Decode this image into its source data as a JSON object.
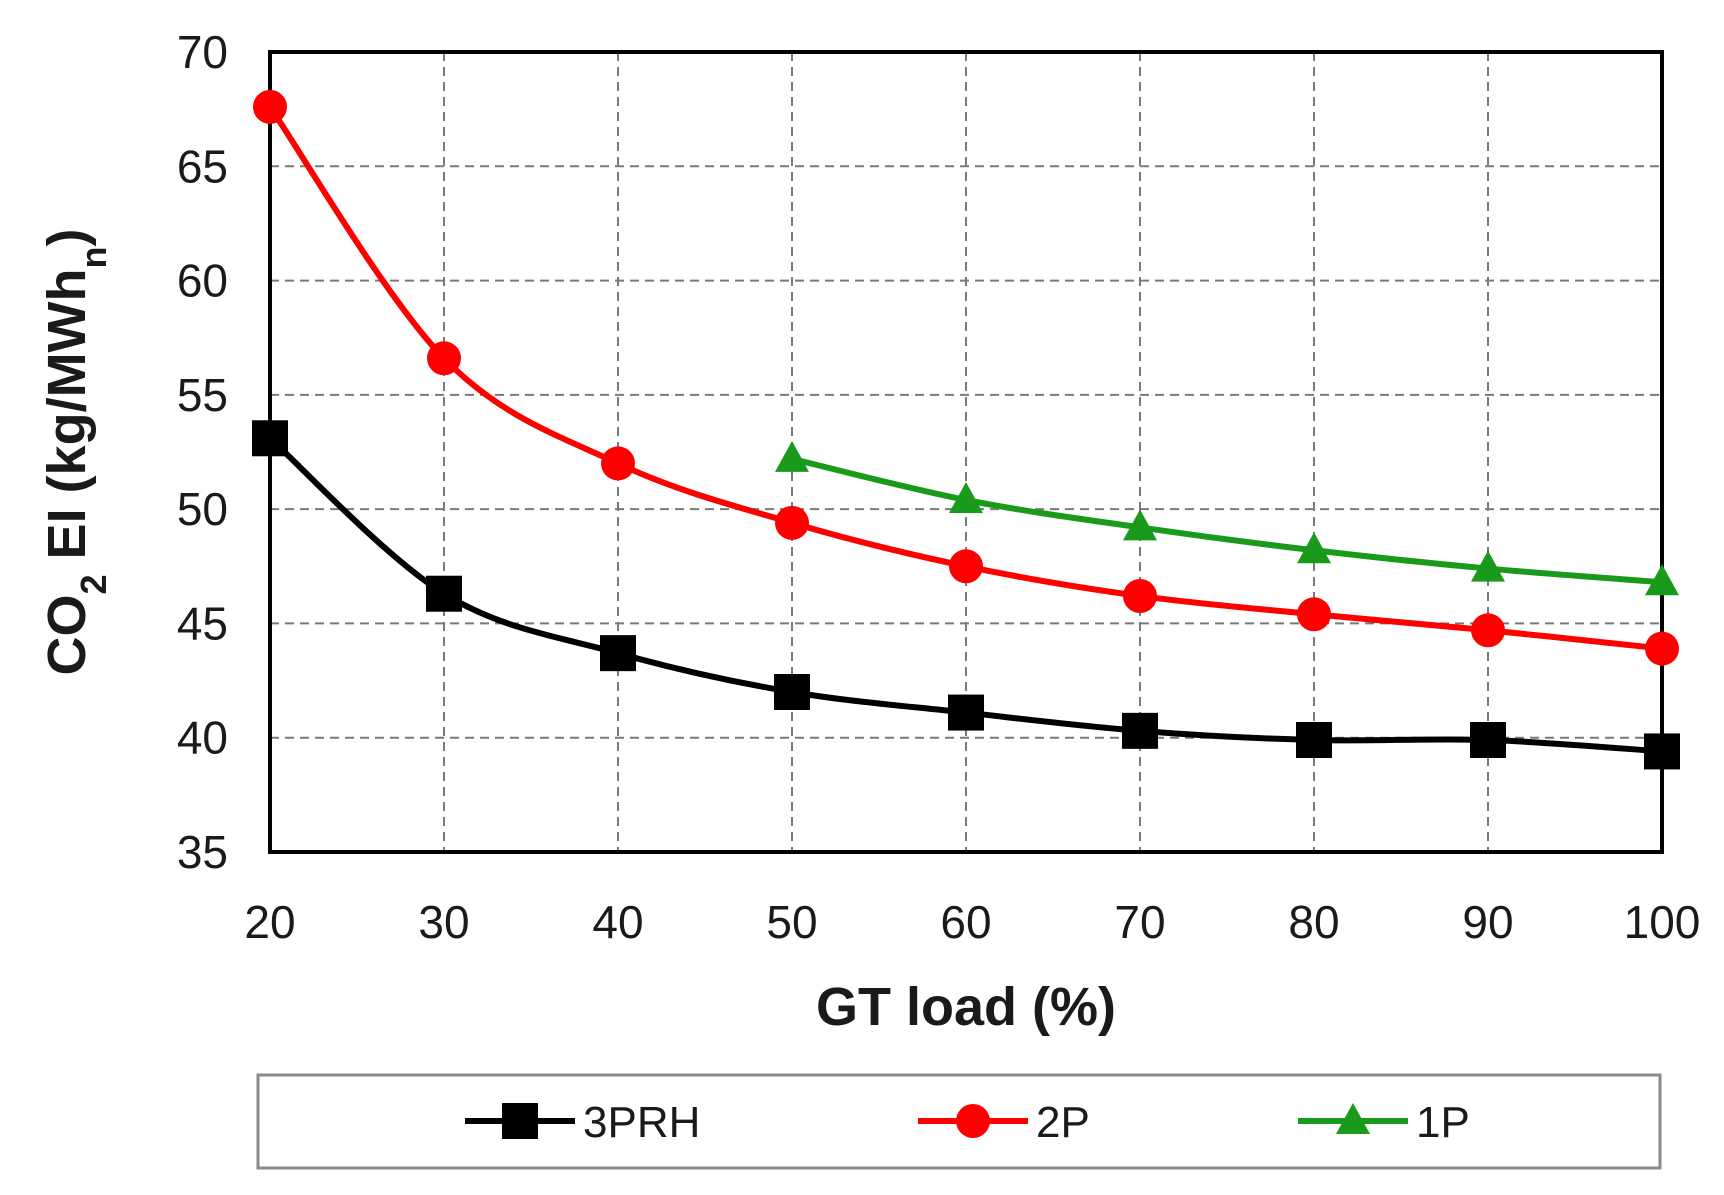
{
  "chart_data": {
    "type": "line",
    "title": "",
    "xlabel": "GT load (%)",
    "ylabel": {
      "prefix": "CO",
      "sub1": "2",
      "middle": " EI (kg/MWh",
      "sub2": "n",
      "suffix": ")"
    },
    "xlim": [
      20,
      100
    ],
    "ylim": [
      35,
      70
    ],
    "xticks": [
      "20",
      "30",
      "40",
      "50",
      "60",
      "70",
      "80",
      "90",
      "100"
    ],
    "yticks": [
      "35",
      "40",
      "45",
      "50",
      "55",
      "60",
      "65",
      "70"
    ],
    "grid": true,
    "legend_position": "bottom",
    "series": [
      {
        "name": "3PRH",
        "color": "#000000",
        "marker": "square",
        "x": [
          20,
          30,
          40,
          50,
          60,
          70,
          80,
          90,
          100
        ],
        "values": [
          53.1,
          46.3,
          43.7,
          42.0,
          41.1,
          40.3,
          39.9,
          39.9,
          39.4
        ]
      },
      {
        "name": "2P",
        "color": "#ff0000",
        "marker": "circle",
        "x": [
          20,
          30,
          40,
          50,
          60,
          70,
          80,
          90,
          100
        ],
        "values": [
          67.6,
          56.6,
          52.0,
          49.4,
          47.5,
          46.2,
          45.4,
          44.7,
          43.9
        ]
      },
      {
        "name": "1P",
        "color": "#1a9a1a",
        "marker": "triangle",
        "x": [
          50,
          60,
          70,
          80,
          90,
          100
        ],
        "values": [
          52.2,
          50.4,
          49.2,
          48.2,
          47.4,
          46.8
        ]
      }
    ]
  }
}
